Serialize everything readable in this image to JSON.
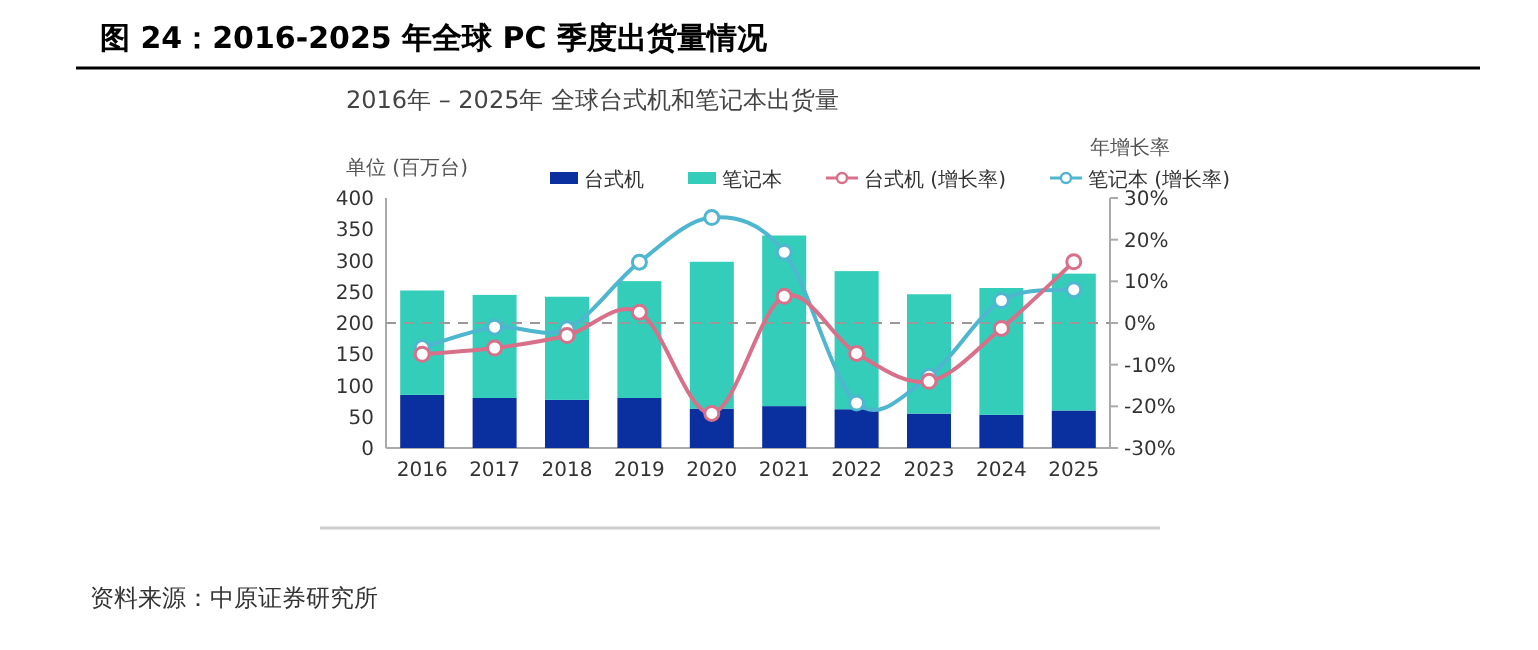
{
  "chart_data": {
    "type": "bar",
    "stacked": true,
    "title": "图 24：2016-2025 年全球 PC 季度出货量情况",
    "subtitle": "2016年 – 2025年 全球台式机和笔记本出货量",
    "ylabel": "单位 (百万台)",
    "y2label": "年增长率",
    "categories": [
      "2016",
      "2017",
      "2018",
      "2019",
      "2020",
      "2021",
      "2022",
      "2023",
      "2024",
      "2025"
    ],
    "series": [
      {
        "name": "台式机",
        "color": "#0a2f9e",
        "values": [
          85,
          80,
          77,
          80,
          63,
          67,
          62,
          55,
          53,
          60
        ]
      },
      {
        "name": "笔记本",
        "color": "#33cdb9",
        "values": [
          167,
          165,
          165,
          187,
          235,
          273,
          221,
          191,
          203,
          219
        ]
      },
      {
        "name": "台式机 (增长率)",
        "type": "line",
        "axis": "y2",
        "color": "#d9708a",
        "values": [
          -7.5,
          -6,
          -3,
          2.6,
          -21.7,
          6.4,
          -7.3,
          -14,
          -1.3,
          14.7
        ]
      },
      {
        "name": "笔记本 (增长率)",
        "type": "line",
        "axis": "y2",
        "color": "#4fb6d0",
        "values": [
          -5.9,
          -1,
          -1.4,
          14.6,
          25.3,
          17,
          -19.2,
          -12.8,
          5.4,
          8
        ]
      }
    ],
    "marker": "circle",
    "legend": "top",
    "grid": false,
    "ylim": [
      0,
      400
    ],
    "yticks": [
      0,
      50,
      100,
      150,
      200,
      250,
      300,
      350,
      400
    ],
    "y2lim": [
      -30,
      30
    ],
    "y2ticks": [
      {
        "value": -30,
        "label": "-30%"
      },
      {
        "value": -20,
        "label": "-20%"
      },
      {
        "value": -10,
        "label": "-10%"
      },
      {
        "value": 0,
        "label": "0%"
      },
      {
        "value": 10,
        "label": "10%"
      },
      {
        "value": 20,
        "label": "20%"
      },
      {
        "value": 30,
        "label": "30%"
      }
    ],
    "ref_lines": [
      {
        "axis": "y2",
        "value": 0,
        "color": "#999999",
        "line_style": "dashed"
      }
    ],
    "annotations": [
      "资料来源：中原证券研究所"
    ]
  }
}
